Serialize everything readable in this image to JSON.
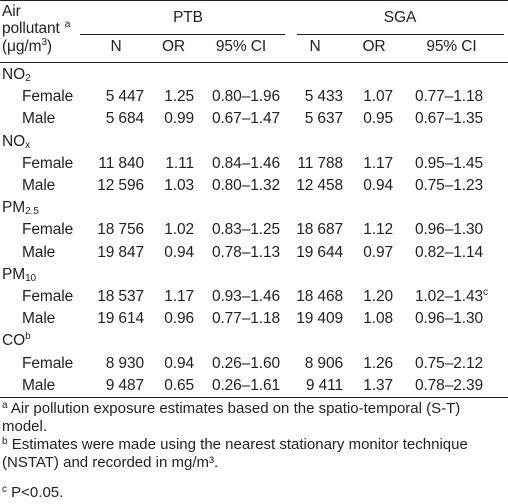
{
  "header": {
    "air_line1": "Air",
    "air_line2": "pollutant",
    "air_sup": "a",
    "unit_prefix": "(μg/m",
    "unit_sup": "3",
    "unit_suffix": ")",
    "group_ptb": "PTB",
    "group_sga": "SGA",
    "col_n": "N",
    "col_or": "OR",
    "col_ci": "95% CI"
  },
  "sections": [
    {
      "name_main": "NO",
      "name_sub": "2",
      "name_sup": "",
      "rows": [
        {
          "label": "Female",
          "ptb_n": "5 447",
          "ptb_or": "1.25",
          "ptb_ci": "0.80–1.96",
          "sga_n": "5 433",
          "sga_or": "1.07",
          "sga_ci": "0.77–1.18",
          "sga_ci_sup": ""
        },
        {
          "label": "Male",
          "ptb_n": "5 684",
          "ptb_or": "0.99",
          "ptb_ci": "0.67–1.47",
          "sga_n": "5 637",
          "sga_or": "0.95",
          "sga_ci": "0.67–1.35",
          "sga_ci_sup": ""
        }
      ]
    },
    {
      "name_main": "NO",
      "name_sub": "x",
      "name_sup": "",
      "rows": [
        {
          "label": "Female",
          "ptb_n": "11 840",
          "ptb_or": "1.11",
          "ptb_ci": "0.84–1.46",
          "sga_n": "11 788",
          "sga_or": "1.17",
          "sga_ci": "0.95–1.45",
          "sga_ci_sup": ""
        },
        {
          "label": "Male",
          "ptb_n": "12 596",
          "ptb_or": "1.03",
          "ptb_ci": "0.80–1.32",
          "sga_n": "12 458",
          "sga_or": "0.94",
          "sga_ci": "0.75–1.23",
          "sga_ci_sup": ""
        }
      ]
    },
    {
      "name_main": "PM",
      "name_sub": "2.5",
      "name_sup": "",
      "rows": [
        {
          "label": "Female",
          "ptb_n": "18 756",
          "ptb_or": "1.02",
          "ptb_ci": "0.83–1.25",
          "sga_n": "18 687",
          "sga_or": "1.12",
          "sga_ci": "0.96–1.30",
          "sga_ci_sup": ""
        },
        {
          "label": "Male",
          "ptb_n": "19 847",
          "ptb_or": "0.94",
          "ptb_ci": "0.78–1.13",
          "sga_n": "19 644",
          "sga_or": "0.97",
          "sga_ci": "0.82–1.14",
          "sga_ci_sup": ""
        }
      ]
    },
    {
      "name_main": "PM",
      "name_sub": "10",
      "name_sup": "",
      "rows": [
        {
          "label": "Female",
          "ptb_n": "18 537",
          "ptb_or": "1.17",
          "ptb_ci": "0.93–1.46",
          "sga_n": "18 468",
          "sga_or": "1.20",
          "sga_ci": "1.02–1.43",
          "sga_ci_sup": "c"
        },
        {
          "label": "Male",
          "ptb_n": "19 614",
          "ptb_or": "0.96",
          "ptb_ci": "0.77–1.18",
          "sga_n": "19 409",
          "sga_or": "1.08",
          "sga_ci": "0.96–1.30",
          "sga_ci_sup": ""
        }
      ]
    },
    {
      "name_main": "CO",
      "name_sub": "",
      "name_sup": "b",
      "rows": [
        {
          "label": "Female",
          "ptb_n": "8 930",
          "ptb_or": "0.94",
          "ptb_ci": "0.26–1.60",
          "sga_n": "8 906",
          "sga_or": "1.26",
          "sga_ci": "0.75–2.12",
          "sga_ci_sup": ""
        },
        {
          "label": "Male",
          "ptb_n": "9 487",
          "ptb_or": "0.65",
          "ptb_ci": "0.26–1.61",
          "sga_n": "9 411",
          "sga_or": "1.37",
          "sga_ci": "0.78–2.39",
          "sga_ci_sup": ""
        }
      ]
    }
  ],
  "footnotes": [
    {
      "mark": "a",
      "text": "Air pollution exposure estimates based on the spatio-temporal (S-T) model."
    },
    {
      "mark": "b",
      "text": "Estimates were made using the nearest stationary monitor technique (NSTAT) and recorded in mg/m³."
    },
    {
      "mark": "c",
      "text": "P<0.05."
    }
  ]
}
